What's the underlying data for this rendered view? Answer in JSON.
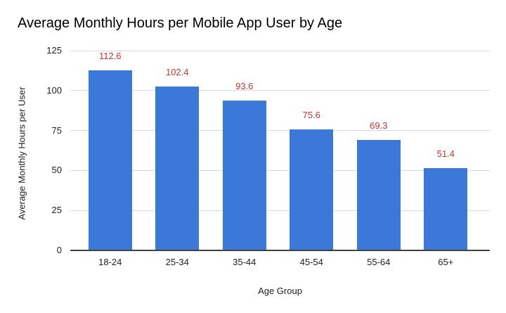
{
  "chart_data": {
    "type": "bar",
    "title": "Average Monthly Hours per Mobile App User by Age",
    "xlabel": "Age Group",
    "ylabel": "Average Monthly Hours per User",
    "categories": [
      "18-24",
      "25-34",
      "35-44",
      "45-54",
      "55-64",
      "65+"
    ],
    "values": [
      112.6,
      102.4,
      93.6,
      75.6,
      69.3,
      51.4
    ],
    "value_labels": [
      "112.6",
      "102.4",
      "93.6",
      "75.6",
      "69.3",
      "51.4"
    ],
    "ylim": [
      0,
      125
    ],
    "yticks": [
      0,
      25,
      50,
      75,
      100,
      125
    ],
    "grid": true,
    "legend": false,
    "colors": {
      "bar": "#3c78d8",
      "value_label": "#cc3333",
      "gridline": "#d9d9d9",
      "axis_line": "#424242",
      "title_text": "#000000",
      "axis_text": "#212121",
      "background": "#ffffff"
    }
  }
}
